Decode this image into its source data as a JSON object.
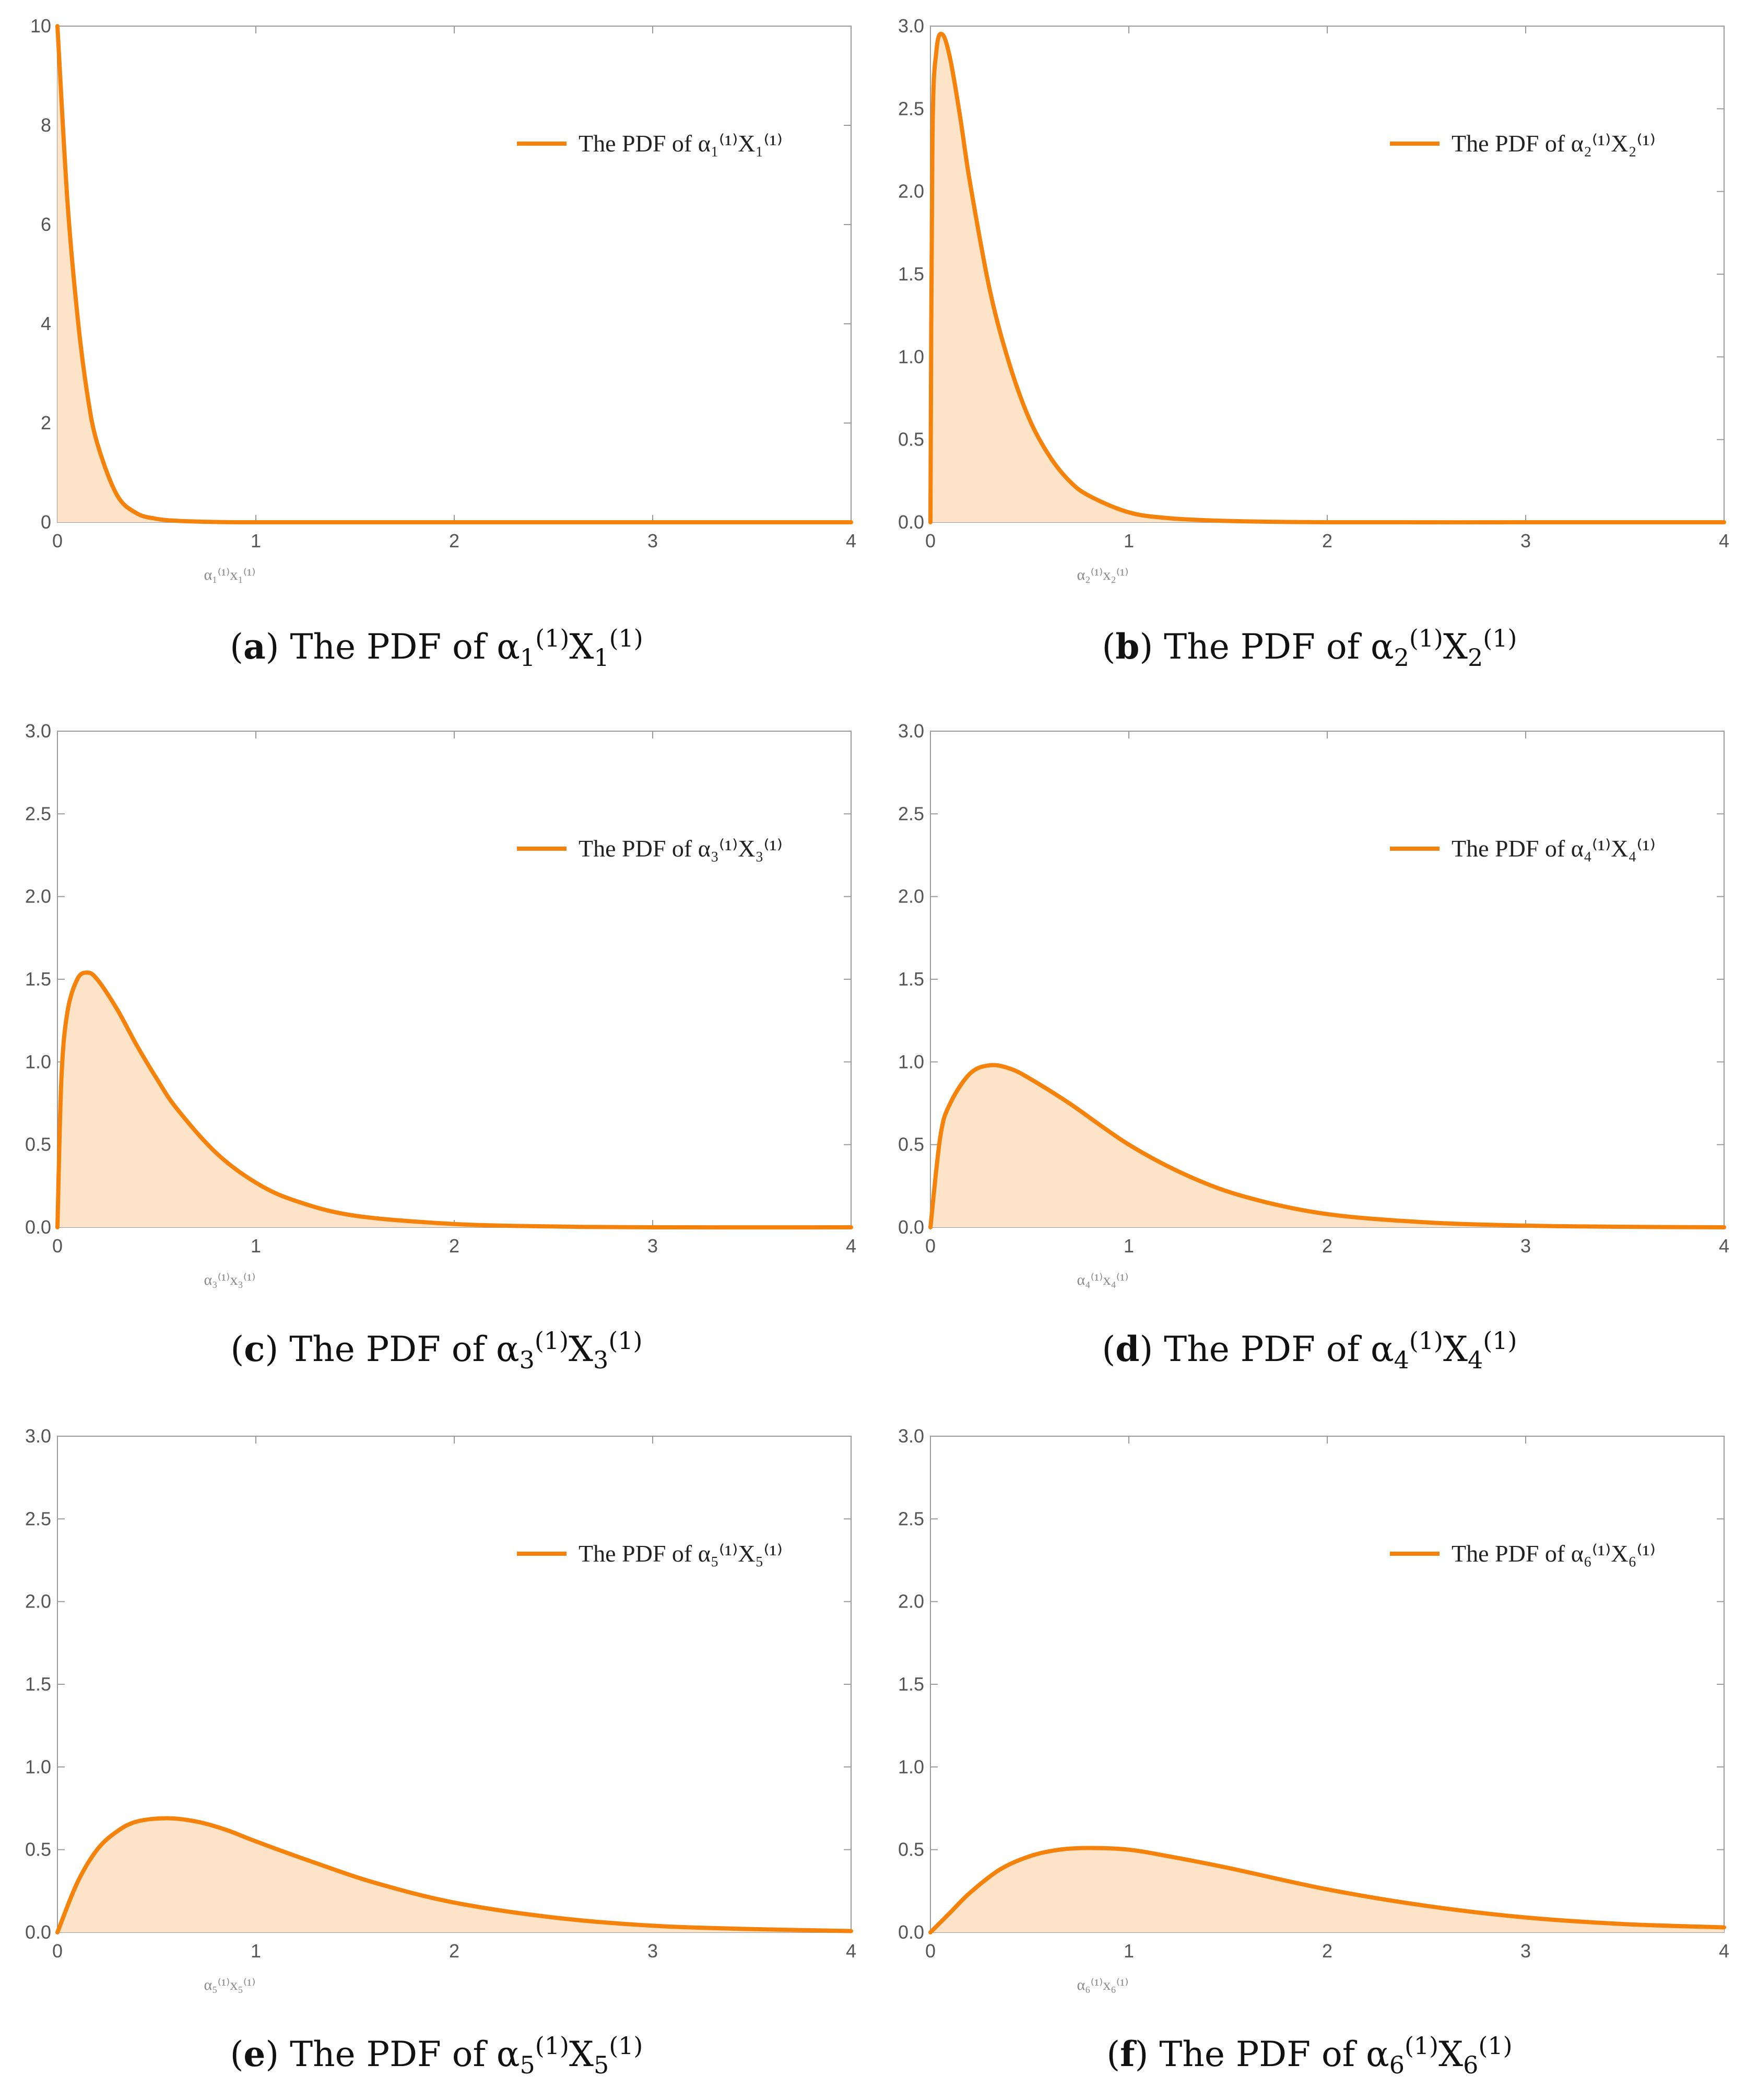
{
  "colors": {
    "line": "#f5820a",
    "fill": "#fde3c8",
    "axis": "#9a9a9a"
  },
  "chart_data": [
    {
      "id": "a",
      "type": "area",
      "caption_letter": "a",
      "caption_text": "The PDF of",
      "caption_var": "α",
      "caption_sub": "1",
      "caption_sup": "(1)",
      "caption_X": "X",
      "legend_label": "The PDF of α₁⁽¹⁾X₁⁽¹⁾",
      "xlabel": "α₁⁽¹⁾x₁⁽¹⁾",
      "xlim": [
        0,
        4
      ],
      "ylim": [
        0,
        10
      ],
      "xticks": [
        "0",
        "1",
        "2",
        "3",
        "4"
      ],
      "yticks": [
        "0",
        "2",
        "4",
        "6",
        "8",
        "10"
      ],
      "ytick_values": [
        0,
        2,
        4,
        6,
        8,
        10
      ],
      "x": [
        0,
        0.05,
        0.1,
        0.15,
        0.2,
        0.3,
        0.4,
        0.5,
        0.6,
        0.8,
        1.0,
        1.5,
        2.0,
        3.0,
        4.0
      ],
      "y": [
        10,
        6.5,
        4.2,
        2.6,
        1.6,
        0.55,
        0.18,
        0.07,
        0.03,
        0.005,
        0,
        0,
        0,
        0,
        0
      ]
    },
    {
      "id": "b",
      "type": "area",
      "caption_letter": "b",
      "caption_text": "The PDF of",
      "caption_var": "α",
      "caption_sub": "2",
      "caption_sup": "(1)",
      "caption_X": "X",
      "legend_label": "The PDF of α₂⁽¹⁾X₂⁽¹⁾",
      "xlabel": "α₂⁽¹⁾x₂⁽¹⁾",
      "xlim": [
        0,
        4
      ],
      "ylim": [
        0,
        3
      ],
      "xticks": [
        "0",
        "1",
        "2",
        "3",
        "4"
      ],
      "yticks": [
        "0.0",
        "0.5",
        "1.0",
        "1.5",
        "2.0",
        "2.5",
        "3.0"
      ],
      "ytick_values": [
        0,
        0.5,
        1,
        1.5,
        2,
        2.5,
        3
      ],
      "x": [
        0,
        0.01,
        0.03,
        0.06,
        0.1,
        0.15,
        0.2,
        0.3,
        0.4,
        0.5,
        0.6,
        0.7,
        0.8,
        1.0,
        1.2,
        1.5,
        2.0,
        3.0,
        4.0
      ],
      "y": [
        0,
        2.3,
        2.85,
        2.95,
        2.8,
        2.45,
        2.05,
        1.4,
        0.95,
        0.62,
        0.4,
        0.25,
        0.16,
        0.06,
        0.025,
        0.008,
        0,
        0,
        0
      ]
    },
    {
      "id": "c",
      "type": "area",
      "caption_letter": "c",
      "caption_text": "The PDF of",
      "caption_var": "α",
      "caption_sub": "3",
      "caption_sup": "(1)",
      "caption_X": "X",
      "legend_label": "The PDF of α₃⁽¹⁾X₃⁽¹⁾",
      "xlabel": "α₃⁽¹⁾x₃⁽¹⁾",
      "xlim": [
        0,
        4
      ],
      "ylim": [
        0,
        3
      ],
      "xticks": [
        "0",
        "1",
        "2",
        "3",
        "4"
      ],
      "yticks": [
        "0.0",
        "0.5",
        "1.0",
        "1.5",
        "2.0",
        "2.5",
        "3.0"
      ],
      "ytick_values": [
        0,
        0.5,
        1,
        1.5,
        2,
        2.5,
        3
      ],
      "x": [
        0,
        0.02,
        0.05,
        0.1,
        0.15,
        0.2,
        0.3,
        0.4,
        0.5,
        0.6,
        0.8,
        1.0,
        1.2,
        1.5,
        2.0,
        2.5,
        3.0,
        4.0
      ],
      "y": [
        0,
        0.9,
        1.3,
        1.5,
        1.54,
        1.5,
        1.32,
        1.1,
        0.9,
        0.72,
        0.45,
        0.27,
        0.16,
        0.07,
        0.02,
        0.005,
        0,
        0
      ]
    },
    {
      "id": "d",
      "type": "area",
      "caption_letter": "d",
      "caption_text": "The PDF of",
      "caption_var": "α",
      "caption_sub": "4",
      "caption_sup": "(1)",
      "caption_X": "X",
      "legend_label": "The PDF of α₄⁽¹⁾X₄⁽¹⁾",
      "xlabel": "α₄⁽¹⁾x₄⁽¹⁾",
      "xlim": [
        0,
        4
      ],
      "ylim": [
        0,
        3
      ],
      "xticks": [
        "0",
        "1",
        "2",
        "3",
        "4"
      ],
      "yticks": [
        "0.0",
        "0.5",
        "1.0",
        "1.5",
        "2.0",
        "2.5",
        "3.0"
      ],
      "ytick_values": [
        0,
        0.5,
        1,
        1.5,
        2,
        2.5,
        3
      ],
      "x": [
        0,
        0.05,
        0.1,
        0.2,
        0.3,
        0.4,
        0.5,
        0.7,
        1.0,
        1.3,
        1.6,
        2.0,
        2.5,
        3.0,
        3.5,
        4.0
      ],
      "y": [
        0,
        0.55,
        0.75,
        0.93,
        0.98,
        0.96,
        0.9,
        0.75,
        0.5,
        0.31,
        0.18,
        0.08,
        0.03,
        0.01,
        0.003,
        0
      ]
    },
    {
      "id": "e",
      "type": "area",
      "caption_letter": "e",
      "caption_text": "The PDF of",
      "caption_var": "α",
      "caption_sub": "5",
      "caption_sup": "(1)",
      "caption_X": "X",
      "legend_label": "The PDF of α₅⁽¹⁾X₅⁽¹⁾",
      "xlabel": "α₅⁽¹⁾x₅⁽¹⁾",
      "xlim": [
        0,
        4
      ],
      "ylim": [
        0,
        3
      ],
      "xticks": [
        "0",
        "1",
        "2",
        "3",
        "4"
      ],
      "yticks": [
        "0.0",
        "0.5",
        "1.0",
        "1.5",
        "2.0",
        "2.5",
        "3.0"
      ],
      "ytick_values": [
        0,
        0.5,
        1,
        1.5,
        2,
        2.5,
        3
      ],
      "x": [
        0,
        0.1,
        0.2,
        0.3,
        0.4,
        0.55,
        0.7,
        0.85,
        1.0,
        1.3,
        1.6,
        2.0,
        2.5,
        3.0,
        3.5,
        4.0
      ],
      "y": [
        0,
        0.3,
        0.5,
        0.61,
        0.67,
        0.69,
        0.67,
        0.62,
        0.55,
        0.42,
        0.3,
        0.18,
        0.09,
        0.04,
        0.02,
        0.008
      ]
    },
    {
      "id": "f",
      "type": "area",
      "caption_letter": "f",
      "caption_text": "The PDF of",
      "caption_var": "α",
      "caption_sub": "6",
      "caption_sup": "(1)",
      "caption_X": "X",
      "legend_label": "The PDF of α₆⁽¹⁾X₆⁽¹⁾",
      "xlabel": "α₆⁽¹⁾x₆⁽¹⁾",
      "xlim": [
        0,
        4
      ],
      "ylim": [
        0,
        3
      ],
      "xticks": [
        "0",
        "1",
        "2",
        "3",
        "4"
      ],
      "yticks": [
        "0.0",
        "0.5",
        "1.0",
        "1.5",
        "2.0",
        "2.5",
        "3.0"
      ],
      "ytick_values": [
        0,
        0.5,
        1,
        1.5,
        2,
        2.5,
        3
      ],
      "x": [
        0,
        0.1,
        0.2,
        0.35,
        0.5,
        0.65,
        0.8,
        1.0,
        1.2,
        1.5,
        2.0,
        2.5,
        3.0,
        3.5,
        4.0
      ],
      "y": [
        0,
        0.12,
        0.24,
        0.38,
        0.46,
        0.5,
        0.51,
        0.5,
        0.46,
        0.39,
        0.26,
        0.16,
        0.09,
        0.05,
        0.03
      ]
    }
  ]
}
